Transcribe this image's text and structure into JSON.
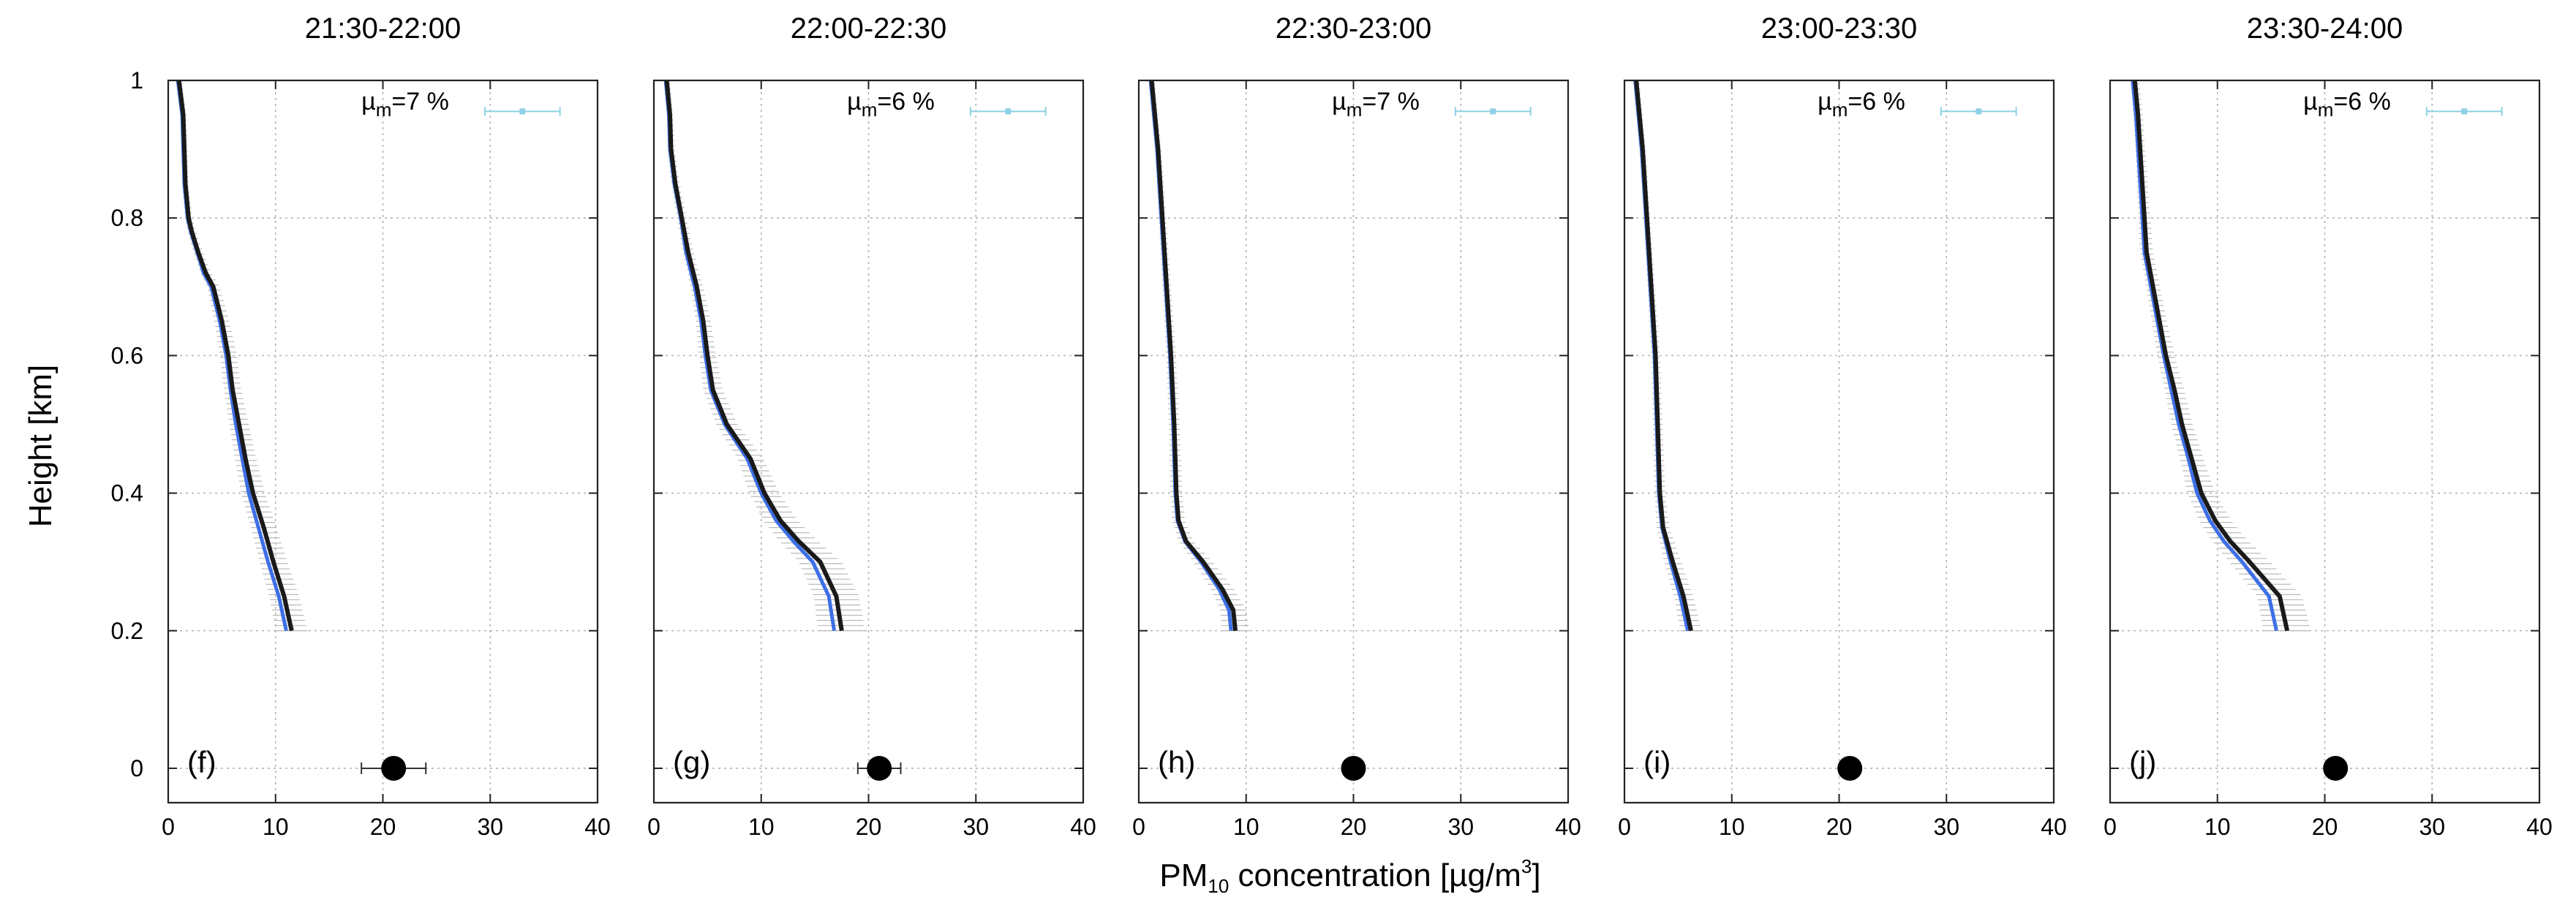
{
  "colors": {
    "frame": "#222222",
    "grid": "#b4b4b4",
    "envelope": "#b8b8b8",
    "mean_line": "#1a1a1a",
    "blue_line": "#3d6fe6",
    "mu_marker": "#8ed0e6",
    "ground_point": "#000000"
  },
  "chart_data": {
    "type": "line",
    "ylabel": "Height [km]",
    "xlabel_main": "PM",
    "xlabel_sub": "10",
    "xlabel_rest": " concentration [µg/m",
    "xlabel_sup": "3",
    "xlabel_end": "]",
    "xlim": [
      0,
      40
    ],
    "ylim": [
      -0.05,
      1.0
    ],
    "x_ticks": [
      "0",
      "10",
      "20",
      "30",
      "40"
    ],
    "y_ticks": [
      "0",
      "0.2",
      "0.4",
      "0.6",
      "0.8",
      "1"
    ],
    "mu_prefix": "µ",
    "mu_sub": "m",
    "panels": [
      {
        "title": "21:30-22:00",
        "tag": "(f)",
        "mu_value": "=7 %",
        "mu_marker": {
          "x": 33,
          "err": 3.5
        },
        "ground": {
          "x": 21,
          "y": 0,
          "err": 3
        },
        "profile": {
          "heights": [
            0.2,
            0.25,
            0.3,
            0.35,
            0.4,
            0.45,
            0.5,
            0.55,
            0.6,
            0.65,
            0.7,
            0.72,
            0.75,
            0.78,
            0.8,
            0.85,
            0.9,
            0.95,
            1.0
          ],
          "black": [
            11.5,
            10.8,
            9.8,
            8.9,
            7.9,
            7.2,
            6.6,
            6.0,
            5.6,
            5.0,
            4.2,
            3.5,
            2.8,
            2.2,
            1.9,
            1.6,
            1.5,
            1.4,
            1.0
          ],
          "blue": [
            11.0,
            10.3,
            9.3,
            8.4,
            7.5,
            6.9,
            6.3,
            5.8,
            5.4,
            4.8,
            4.0,
            3.3,
            2.7,
            2.1,
            1.8,
            1.5,
            1.4,
            1.3,
            0.9
          ],
          "spread": [
            1.5,
            1.4,
            1.3,
            1.2,
            1.1,
            1.0,
            0.9,
            0.8,
            0.8,
            0.7,
            0.6,
            0.5,
            0.45,
            0.4,
            0.35,
            0.3,
            0.3,
            0.3,
            0.3
          ]
        }
      },
      {
        "title": "22:00-22:30",
        "tag": "(g)",
        "mu_value": "=6 %",
        "mu_marker": {
          "x": 33,
          "err": 3.5
        },
        "ground": {
          "x": 21,
          "y": 0,
          "err": 2
        },
        "profile": {
          "heights": [
            0.2,
            0.25,
            0.3,
            0.33,
            0.36,
            0.4,
            0.45,
            0.5,
            0.55,
            0.6,
            0.65,
            0.7,
            0.75,
            0.8,
            0.85,
            0.9,
            0.95,
            1.0
          ],
          "black": [
            17.5,
            17.0,
            15.5,
            13.5,
            11.8,
            10.3,
            9.0,
            6.8,
            5.5,
            5.0,
            4.6,
            4.0,
            3.2,
            2.6,
            2.0,
            1.6,
            1.5,
            1.2
          ],
          "blue": [
            16.8,
            16.3,
            14.8,
            13.0,
            11.4,
            10.0,
            8.7,
            6.6,
            5.3,
            4.8,
            4.4,
            3.8,
            3.0,
            2.5,
            1.9,
            1.5,
            1.4,
            1.1
          ],
          "spread": [
            2.2,
            2.1,
            2.0,
            1.8,
            1.6,
            1.4,
            1.2,
            1.0,
            0.9,
            0.8,
            0.7,
            0.6,
            0.5,
            0.45,
            0.4,
            0.35,
            0.3,
            0.3
          ]
        }
      },
      {
        "title": "22:30-23:00",
        "tag": "(h)",
        "mu_value": "=7 %",
        "mu_marker": {
          "x": 33,
          "err": 3.5
        },
        "ground": {
          "x": 20,
          "y": 0,
          "err": 0.8
        },
        "profile": {
          "heights": [
            0.2,
            0.23,
            0.26,
            0.3,
            0.33,
            0.36,
            0.4,
            0.5,
            0.6,
            0.7,
            0.8,
            0.9,
            0.95,
            1.0
          ],
          "black": [
            9.0,
            8.8,
            7.8,
            6.0,
            4.4,
            3.7,
            3.5,
            3.3,
            3.0,
            2.6,
            2.2,
            1.8,
            1.5,
            1.2
          ],
          "blue": [
            8.6,
            8.4,
            7.5,
            5.8,
            4.3,
            3.6,
            3.4,
            3.2,
            2.9,
            2.5,
            2.1,
            1.7,
            1.4,
            1.1
          ],
          "spread": [
            1.3,
            1.2,
            1.1,
            0.9,
            0.7,
            0.6,
            0.55,
            0.5,
            0.45,
            0.4,
            0.35,
            0.3,
            0.3,
            0.3
          ]
        }
      },
      {
        "title": "23:00-23:30",
        "tag": "(i)",
        "mu_value": "=6 %",
        "mu_marker": {
          "x": 33,
          "err": 3.5
        },
        "ground": {
          "x": 21,
          "y": 0,
          "err": 0.8
        },
        "profile": {
          "heights": [
            0.2,
            0.25,
            0.3,
            0.35,
            0.4,
            0.5,
            0.6,
            0.7,
            0.8,
            0.9,
            0.95,
            1.0
          ],
          "black": [
            6.2,
            5.5,
            4.5,
            3.6,
            3.3,
            3.1,
            2.9,
            2.5,
            2.1,
            1.7,
            1.4,
            1.1
          ],
          "blue": [
            5.9,
            5.2,
            4.3,
            3.5,
            3.2,
            3.0,
            2.8,
            2.4,
            2.0,
            1.6,
            1.3,
            1.0
          ],
          "spread": [
            1.0,
            0.9,
            0.8,
            0.6,
            0.5,
            0.45,
            0.4,
            0.35,
            0.3,
            0.3,
            0.3,
            0.3
          ]
        }
      },
      {
        "title": "23:30-24:00",
        "tag": "(j)",
        "mu_value": "=6 %",
        "mu_marker": {
          "x": 33,
          "err": 3.5
        },
        "ground": {
          "x": 21,
          "y": 0,
          "err": 0.8
        },
        "profile": {
          "heights": [
            0.2,
            0.25,
            0.3,
            0.33,
            0.36,
            0.4,
            0.45,
            0.5,
            0.55,
            0.6,
            0.65,
            0.7,
            0.75,
            0.8,
            0.85,
            0.9,
            0.95,
            1.0
          ],
          "black": [
            16.5,
            15.8,
            13.0,
            11.2,
            9.8,
            8.5,
            7.6,
            6.7,
            6.0,
            5.2,
            4.6,
            4.0,
            3.4,
            3.2,
            3.0,
            2.8,
            2.6,
            2.3
          ],
          "blue": [
            15.5,
            14.8,
            12.3,
            10.6,
            9.3,
            8.1,
            7.3,
            6.4,
            5.7,
            5.0,
            4.4,
            3.8,
            3.2,
            3.0,
            2.8,
            2.6,
            2.4,
            2.1
          ],
          "spread": [
            2.2,
            2.1,
            1.9,
            1.7,
            1.5,
            1.3,
            1.1,
            1.0,
            0.9,
            0.8,
            0.7,
            0.65,
            0.6,
            0.55,
            0.5,
            0.45,
            0.45,
            0.4
          ]
        }
      }
    ]
  }
}
